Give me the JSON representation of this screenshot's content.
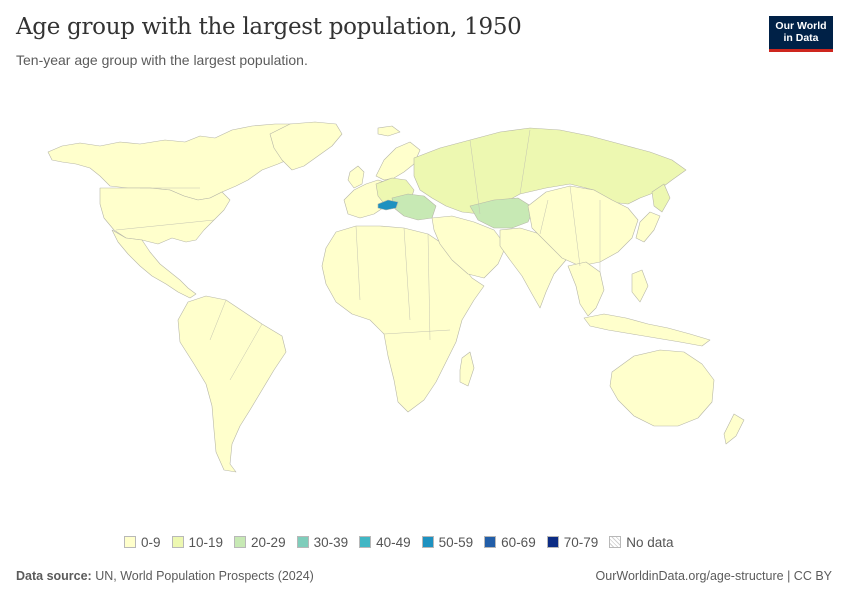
{
  "header": {
    "title": "Age group with the largest population, 1950",
    "subtitle": "Ten-year age group with the largest population.",
    "logo_line1": "Our World",
    "logo_line2": "in Data"
  },
  "colors": {
    "brand_navy": "#002147",
    "brand_red": "#ce261e",
    "age_0_9": "#ffffcc",
    "age_10_19": "#edf8b1",
    "age_20_29": "#c7e9b4",
    "age_50_59": "#1d91c0",
    "no_data": "#ffffff"
  },
  "legend": [
    {
      "label": "0-9",
      "color": "#ffffcc"
    },
    {
      "label": "10-19",
      "color": "#edf8b1"
    },
    {
      "label": "20-29",
      "color": "#c7e9b4"
    },
    {
      "label": "30-39",
      "color": "#7fcdbb"
    },
    {
      "label": "40-49",
      "color": "#41b6c4"
    },
    {
      "label": "50-59",
      "color": "#1d91c0"
    },
    {
      "label": "60-69",
      "color": "#225ea8"
    },
    {
      "label": "70-79",
      "color": "#0c2c84"
    },
    {
      "label": "No data",
      "color": "none"
    }
  ],
  "footer": {
    "source_label": "Data source:",
    "source_text": " UN, World Population Prospects (2024)",
    "credit_link": "OurWorldinData.org/age-structure",
    "credit_suffix": " | CC BY"
  }
}
